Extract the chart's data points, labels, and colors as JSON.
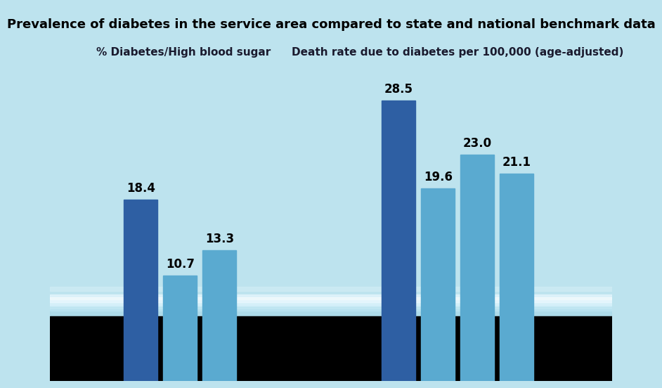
{
  "title": "Prevalence of diabetes in the service area compared to state and national benchmark data",
  "subtitle_left": "% Diabetes/High blood sugar",
  "subtitle_right": "Death rate due to diabetes per 100,000 (age-adjusted)",
  "chart1_values": [
    18.4,
    10.7,
    13.3
  ],
  "chart1_labels": [
    "18.4",
    "10.7",
    "13.3"
  ],
  "chart2_values": [
    28.5,
    19.6,
    23.0,
    21.1
  ],
  "chart2_labels": [
    "28.5",
    "19.6",
    "23.0",
    "21.1"
  ],
  "bar_color_dark": "#2e5fa3",
  "bar_color_light1": "#5aaad0",
  "bar_color_light2": "#5aaad0",
  "bar_color_light3": "#5aaad0",
  "bg_color": "#bde3ee",
  "title_fontsize": 13,
  "subtitle_fontsize": 11,
  "value_fontsize": 12
}
